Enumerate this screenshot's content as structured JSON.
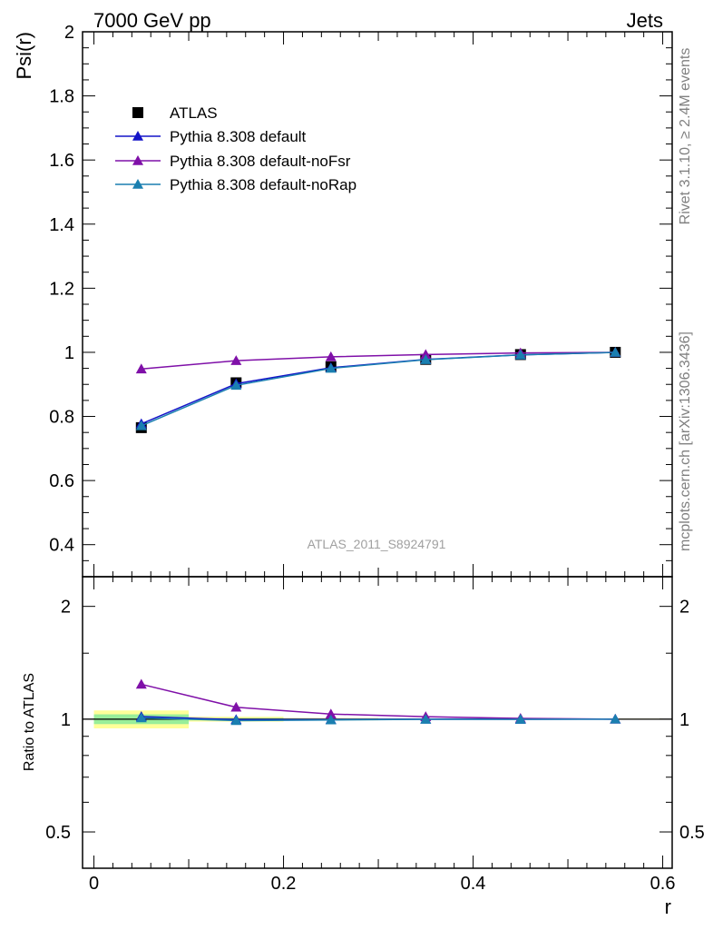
{
  "header": {
    "left": "7000 GeV pp",
    "right": "Jets"
  },
  "side_labels": {
    "rivet": "Rivet 3.1.10, ≥ 2.4M events",
    "mcplots": "mcplots.cern.ch [arXiv:1306.3436]"
  },
  "watermark": "ATLAS_2011_S8924791",
  "chart_data": [
    {
      "type": "line",
      "title": "",
      "xlabel": "",
      "ylabel": "Psi(r)",
      "xlim": [
        -0.012,
        0.61
      ],
      "ylim": [
        0.3,
        2.0
      ],
      "yticks": [
        "0.4",
        "0.6",
        "0.8",
        "1",
        "1.2",
        "1.4",
        "1.6",
        "1.8",
        "2"
      ],
      "x": [
        0.05,
        0.15,
        0.25,
        0.35,
        0.45,
        0.55
      ],
      "series": [
        {
          "name": "ATLAS",
          "marker": "square",
          "color": "#000000",
          "values": [
            0.765,
            0.905,
            0.955,
            0.978,
            0.993,
            1.0
          ]
        },
        {
          "name": "Pythia 8.308 default",
          "marker": "triangle",
          "color": "#1414c8",
          "values": [
            0.777,
            0.902,
            0.952,
            0.978,
            0.992,
            1.0
          ]
        },
        {
          "name": "Pythia 8.308 default-noFsr",
          "marker": "triangle",
          "color": "#7f10a8",
          "values": [
            0.948,
            0.974,
            0.986,
            0.993,
            0.998,
            1.0
          ]
        },
        {
          "name": "Pythia 8.308 default-noRap",
          "marker": "triangle",
          "color": "#1a7fb0",
          "values": [
            0.771,
            0.897,
            0.95,
            0.977,
            0.992,
            1.0
          ]
        }
      ],
      "legend": "top-left"
    },
    {
      "type": "line",
      "xlabel": "r",
      "ylabel": "Ratio to ATLAS",
      "xlim": [
        -0.012,
        0.61
      ],
      "ylim": [
        0.4,
        2.4
      ],
      "log_y": true,
      "xticks": [
        "0",
        "0.2",
        "0.4",
        "0.6"
      ],
      "yticks": [
        "0.5",
        "1",
        "2"
      ],
      "x": [
        0.05,
        0.15,
        0.25,
        0.35,
        0.45,
        0.55
      ],
      "series": [
        {
          "name": "Pythia 8.308 default",
          "color": "#1414c8",
          "values": [
            1.016,
            0.997,
            0.997,
            1.0,
            0.999,
            1.0
          ]
        },
        {
          "name": "Pythia 8.308 default-noFsr",
          "color": "#7f10a8",
          "values": [
            1.239,
            1.076,
            1.032,
            1.015,
            1.005,
            1.0
          ]
        },
        {
          "name": "Pythia 8.308 default-noRap",
          "color": "#1a7fb0",
          "values": [
            1.008,
            0.991,
            0.995,
            0.999,
            0.999,
            1.0
          ]
        }
      ],
      "bands": [
        {
          "x0": 0.0,
          "x1": 0.1,
          "lo_outer": 0.945,
          "hi_outer": 1.055,
          "lo_inner": 0.97,
          "hi_inner": 1.03
        },
        {
          "x0": 0.1,
          "x1": 0.2,
          "lo_outer": 0.985,
          "hi_outer": 1.015,
          "lo_inner": 0.993,
          "hi_inner": 1.007
        },
        {
          "x0": 0.2,
          "x1": 0.3,
          "lo_outer": 0.993,
          "hi_outer": 1.007,
          "lo_inner": 0.997,
          "hi_inner": 1.003
        },
        {
          "x0": 0.3,
          "x1": 0.6,
          "lo_outer": 0.997,
          "hi_outer": 1.003,
          "lo_inner": 0.999,
          "hi_inner": 1.001
        }
      ],
      "band_colors": {
        "outer": "#ffff99",
        "inner": "#99ee99"
      }
    }
  ]
}
